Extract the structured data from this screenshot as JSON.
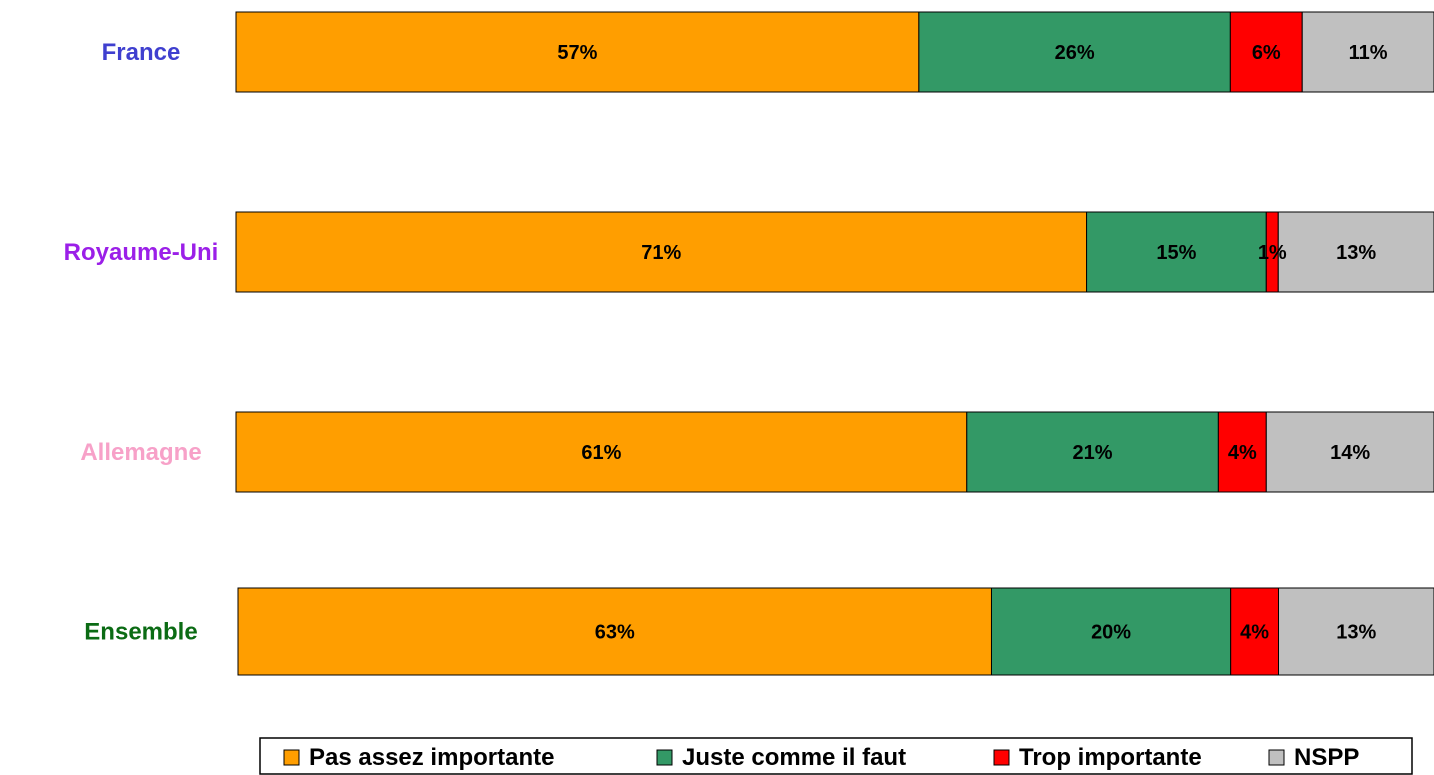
{
  "chart_data": {
    "type": "bar",
    "orientation": "horizontal",
    "stacked": true,
    "categories": [
      "France",
      "Royaume-Uni",
      "Allemagne",
      "Ensemble"
    ],
    "category_colors": [
      "#3F3FCF",
      "#9B1FE8",
      "#F7A1C8",
      "#0B6B14"
    ],
    "series": [
      {
        "name": "Pas assez importante",
        "color": "#FF9E00",
        "values": [
          57,
          71,
          61,
          63
        ]
      },
      {
        "name": "Juste comme il faut",
        "color": "#339966",
        "values": [
          26,
          15,
          21,
          20
        ]
      },
      {
        "name": "Trop importante",
        "color": "#FF0000",
        "values": [
          6,
          1,
          4,
          4
        ]
      },
      {
        "name": "NSPP",
        "color": "#C0C0C0",
        "values": [
          11,
          13,
          14,
          13
        ]
      }
    ],
    "value_labels": [
      [
        "57%",
        "26%",
        "6%",
        "11%"
      ],
      [
        "71%",
        "15%",
        "1%",
        "13%"
      ],
      [
        "61%",
        "21%",
        "4%",
        "14%"
      ],
      [
        "63%",
        "20%",
        "4%",
        "13%"
      ]
    ],
    "xlim": [
      0,
      100
    ],
    "grid": false,
    "legend_position": "bottom"
  }
}
